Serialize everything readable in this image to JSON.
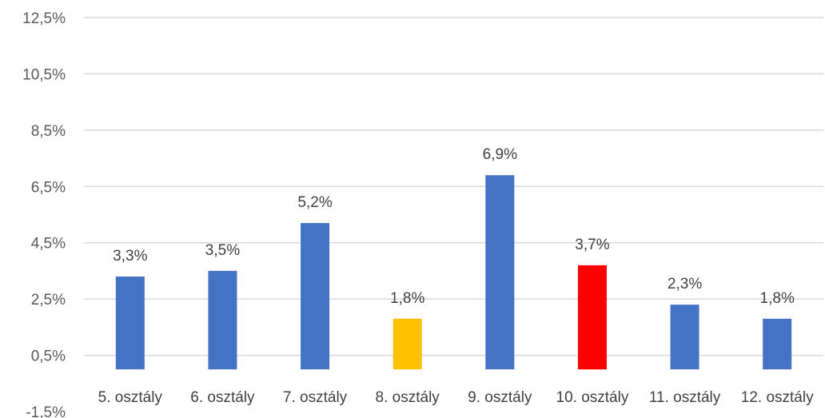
{
  "chart_data": {
    "type": "bar",
    "categories": [
      "5. osztály",
      "6. osztály",
      "7. osztály",
      "8. osztály",
      "9. osztály",
      "10. osztály",
      "11. osztály",
      "12. osztály"
    ],
    "values": [
      3.3,
      3.5,
      5.2,
      1.8,
      6.9,
      3.7,
      2.3,
      1.8
    ],
    "data_labels": [
      "3,3%",
      "3,5%",
      "5,2%",
      "1,8%",
      "6,9%",
      "3,7%",
      "2,3%",
      "1,8%"
    ],
    "bar_colors": [
      "#4472c4",
      "#4472c4",
      "#4472c4",
      "#ffc000",
      "#4472c4",
      "#ff0000",
      "#4472c4",
      "#4472c4"
    ],
    "yticks": [
      -1.5,
      0.5,
      2.5,
      4.5,
      6.5,
      8.5,
      10.5,
      12.5
    ],
    "ytick_labels": [
      "-1,5%",
      "0,5%",
      "2,5%",
      "4,5%",
      "6,5%",
      "8,5%",
      "10,5%",
      "12,5%"
    ],
    "ylim": [
      -1.5,
      12.5
    ],
    "title": "",
    "xlabel": "",
    "ylabel": "",
    "grid": true,
    "legend": "none"
  }
}
